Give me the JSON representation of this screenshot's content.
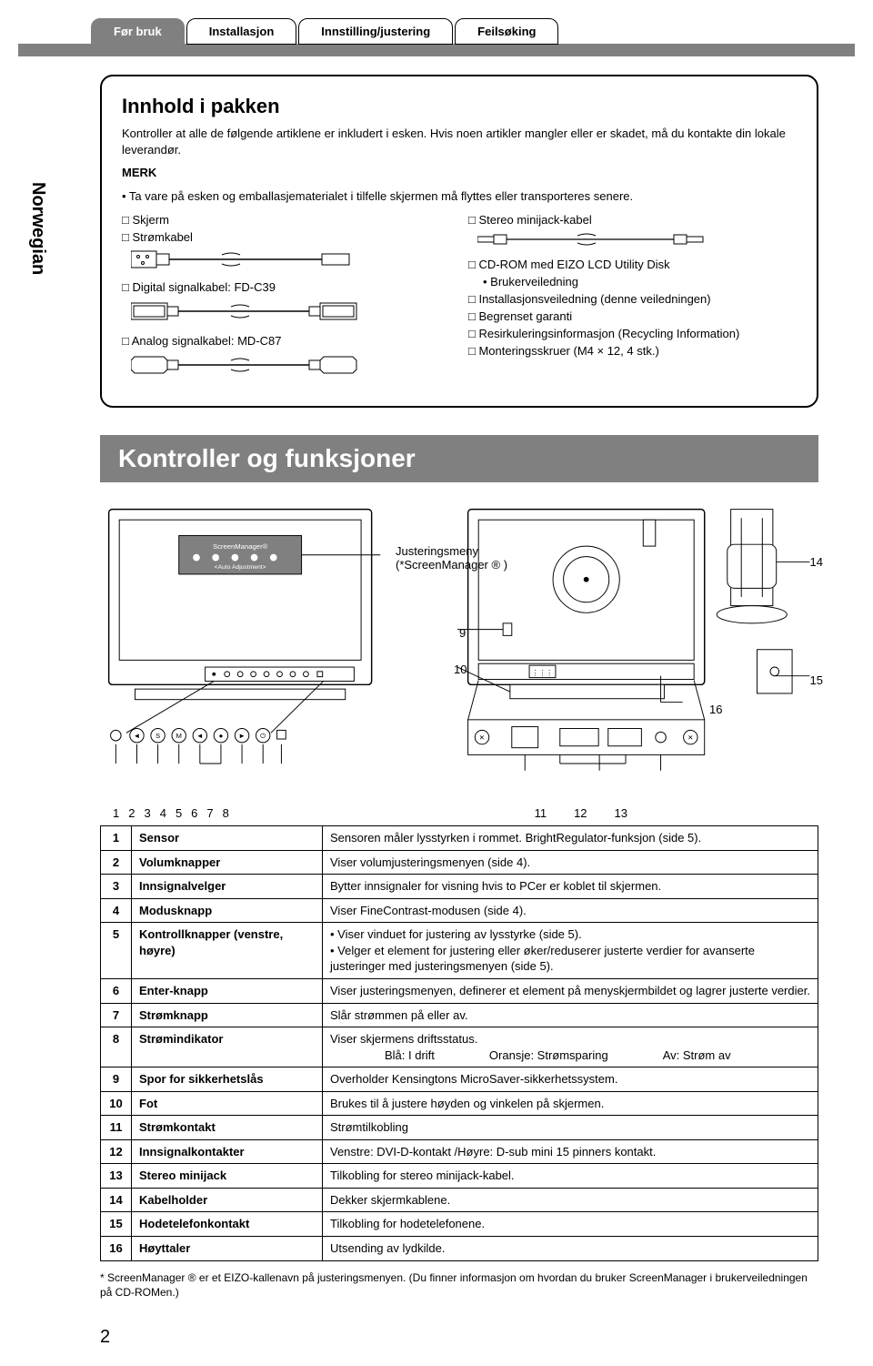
{
  "tabs": [
    "Før bruk",
    "Installasjon",
    "Innstilling/justering",
    "Feilsøking"
  ],
  "side_label": "Norwegian",
  "pkg": {
    "title": "Innhold i pakken",
    "intro": "Kontroller at alle de følgende artiklene er inkludert i esken. Hvis noen artikler mangler eller er skadet, må du kontakte din lokale leverandør.",
    "merk_label": "MERK",
    "merk_text": "• Ta vare på esken og emballasjematerialet i tilfelle skjermen må flyttes eller transporteres senere.",
    "left": {
      "skjerm": "□ Skjerm",
      "strom": "□ Strømkabel",
      "digital": "□ Digital signalkabel: FD-C39",
      "analog": "□ Analog signalkabel: MD-C87"
    },
    "right": {
      "stereo": "□ Stereo minijack-kabel",
      "cdrom": "□ CD-ROM med EIZO LCD Utility Disk",
      "bruker": "• Brukerveiledning",
      "install": "□ Installasjonsveiledning (denne veiledningen)",
      "garanti": "□ Begrenset garanti",
      "recycle": "□ Resirkuleringsinformasjon (Recycling Information)",
      "skruer": "□ Monteringsskruer (M4 × 12, 4 stk.)"
    }
  },
  "kontroller_heading": "Kontroller og funksjoner",
  "callouts": {
    "justering": "Justeringsmeny\n(*ScreenManager ® )",
    "c9": "9",
    "c10": "10",
    "c14": "14",
    "c15": "15",
    "c16": "16"
  },
  "num_row_left": [
    "1",
    "2",
    "3",
    "4",
    "5",
    "6",
    "7",
    "8"
  ],
  "num_row_right": [
    "11",
    "12",
    "13"
  ],
  "table": [
    {
      "n": "1",
      "name": "Sensor",
      "desc": "Sensoren måler lysstyrken i rommet. BrightRegulator-funksjon (side 5)."
    },
    {
      "n": "2",
      "name": "Volumknapper",
      "desc": "Viser volumjusteringsmenyen (side 4)."
    },
    {
      "n": "3",
      "name": "Innsignalvelger",
      "desc": "Bytter innsignaler for visning hvis to PCer er koblet til skjermen."
    },
    {
      "n": "4",
      "name": "Modusknapp",
      "desc": "Viser FineContrast-modusen (side 4)."
    },
    {
      "n": "5",
      "name": "Kontrollknapper (venstre, høyre)",
      "desc": "• Viser vinduet for justering av lysstyrke (side 5).\n• Velger et element for justering eller øker/reduserer justerte verdier for avanserte justeringer med justeringsmenyen (side 5)."
    },
    {
      "n": "6",
      "name": "Enter-knapp",
      "desc": "Viser justeringsmenyen, definerer et element på menyskjermbildet og lagrer justerte verdier."
    },
    {
      "n": "7",
      "name": "Strømknapp",
      "desc": "Slår strømmen på eller av."
    },
    {
      "n": "8",
      "name": "Strømindikator",
      "desc": "Viser skjermens driftsstatus.",
      "status": [
        {
          "l": "Blå: I drift"
        },
        {
          "l": "Oransje: Strømsparing"
        },
        {
          "l": "Av: Strøm av"
        }
      ]
    },
    {
      "n": "9",
      "name": "Spor for sikkerhetslås",
      "desc": "Overholder Kensingtons MicroSaver-sikkerhetssystem."
    },
    {
      "n": "10",
      "name": "Fot",
      "desc": "Brukes til å justere høyden og vinkelen på skjermen."
    },
    {
      "n": "11",
      "name": "Strømkontakt",
      "desc": "Strømtilkobling"
    },
    {
      "n": "12",
      "name": "Innsignalkontakter",
      "desc": "Venstre: DVI-D-kontakt /Høyre: D-sub mini 15 pinners kontakt."
    },
    {
      "n": "13",
      "name": "Stereo minijack",
      "desc": "Tilkobling for stereo minijack-kabel."
    },
    {
      "n": "14",
      "name": "Kabelholder",
      "desc": "Dekker skjermkablene."
    },
    {
      "n": "15",
      "name": "Hodetelefonkontakt",
      "desc": "Tilkobling for hodetelefonene."
    },
    {
      "n": "16",
      "name": "Høyttaler",
      "desc": "Utsending av lydkilde."
    }
  ],
  "footnote": "* ScreenManager ® er et EIZO-kallenavn på justeringsmenyen. (Du finner informasjon om hvordan du bruker ScreenManager i brukerveiledningen på CD-ROMen.)",
  "page_number": "2"
}
